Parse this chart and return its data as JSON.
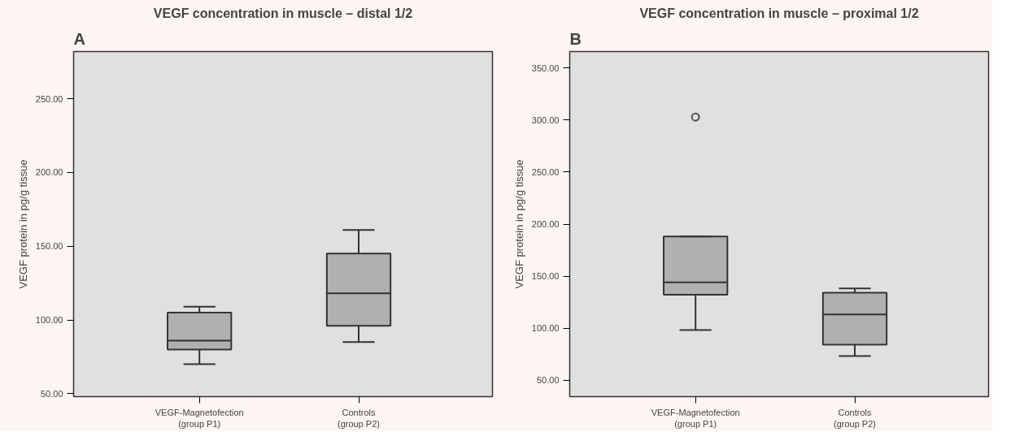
{
  "chart_data": [
    {
      "type": "box",
      "title": "VEGF concentration in muscle – distal 1/2",
      "annotations": [
        "A"
      ],
      "ylabel": "VEGF protein in pg/g tissue",
      "categories": [
        "VEGF-Magnetofection\n(group P1)",
        "Controls\n(group P2)"
      ],
      "color": "#b0b0b0",
      "boxes": [
        {
          "low": 70,
          "q1": 80,
          "median": 86,
          "q3": 105,
          "high": 109
        },
        {
          "low": 85,
          "q1": 96,
          "median": 118,
          "q3": 145,
          "high": 161
        }
      ],
      "ylim": [
        48,
        282
      ],
      "yticks": [
        {
          "value": 50,
          "label": "50.00"
        },
        {
          "value": 100,
          "label": "100.00"
        },
        {
          "value": 150,
          "label": "150.00"
        },
        {
          "value": 200,
          "label": "200.00"
        },
        {
          "value": 250,
          "label": "250.00"
        }
      ],
      "grid": false
    },
    {
      "type": "box",
      "title": "VEGF concentration in muscle – proximal 1/2",
      "annotations": [
        "B"
      ],
      "ylabel": "VEGF protein in pg/g tissue",
      "categories": [
        "VEGF-Magnetofection\n(group P1)",
        "Controls\n(group P2)"
      ],
      "color": "#b0b0b0",
      "boxes": [
        {
          "low": 98,
          "q1": 132,
          "median": 144,
          "q3": 188,
          "high": 188,
          "outliers": [
            303
          ]
        },
        {
          "low": 73,
          "q1": 84,
          "median": 113,
          "q3": 134,
          "high": 138
        }
      ],
      "ylim": [
        34,
        366
      ],
      "yticks": [
        {
          "value": 50,
          "label": "50.00"
        },
        {
          "value": 100,
          "label": "100.00"
        },
        {
          "value": 150,
          "label": "150.00"
        },
        {
          "value": 200,
          "label": "200.00"
        },
        {
          "value": 250,
          "label": "250.00"
        },
        {
          "value": 300,
          "label": "300.00"
        },
        {
          "value": 350,
          "label": "350.00"
        }
      ],
      "grid": false
    }
  ]
}
